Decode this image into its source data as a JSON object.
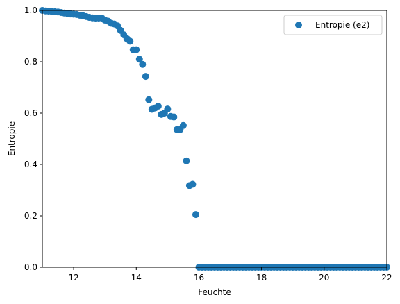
{
  "chart_data": {
    "type": "scatter",
    "title": "",
    "xlabel": "Feuchte",
    "ylabel": "Entropie",
    "xlim": [
      11,
      22
    ],
    "ylim": [
      0,
      1
    ],
    "grid": false,
    "legend_position": "top-right",
    "x_ticks": [
      "12",
      "14",
      "16",
      "18",
      "20",
      "22"
    ],
    "y_ticks": [
      "0.0",
      "0.2",
      "0.4",
      "0.6",
      "0.8",
      "1.0"
    ],
    "series": [
      {
        "name": "Entropie (e2)",
        "color": "#1f77b4",
        "x": [
          11.0,
          11.1,
          11.2,
          11.3,
          11.4,
          11.5,
          11.6,
          11.7,
          11.8,
          11.9,
          12.0,
          12.1,
          12.2,
          12.3,
          12.4,
          12.5,
          12.6,
          12.7,
          12.8,
          12.9,
          13.0,
          13.1,
          13.2,
          13.3,
          13.4,
          13.5,
          13.6,
          13.7,
          13.8,
          13.9,
          14.0,
          14.1,
          14.2,
          14.3,
          14.4,
          14.5,
          14.6,
          14.7,
          14.8,
          14.9,
          15.0,
          15.1,
          15.2,
          15.3,
          15.4,
          15.5,
          15.6,
          15.7,
          15.8,
          15.9,
          16.0,
          16.1,
          16.2,
          16.3,
          16.4,
          16.5,
          16.6,
          16.7,
          16.8,
          16.9,
          17.0,
          17.1,
          17.2,
          17.3,
          17.4,
          17.5,
          17.6,
          17.7,
          17.8,
          17.9,
          18.0,
          18.1,
          18.2,
          18.3,
          18.4,
          18.5,
          18.6,
          18.7,
          18.8,
          18.9,
          19.0,
          19.1,
          19.2,
          19.3,
          19.4,
          19.5,
          19.6,
          19.7,
          19.8,
          19.9,
          20.0,
          20.1,
          20.2,
          20.3,
          20.4,
          20.5,
          20.6,
          20.7,
          20.8,
          20.9,
          21.0,
          21.1,
          21.2,
          21.3,
          21.4,
          21.5,
          21.6,
          21.7,
          21.8,
          21.9,
          22.0
        ],
        "y": [
          1.0,
          0.998,
          0.997,
          0.996,
          0.995,
          0.994,
          0.992,
          0.99,
          0.988,
          0.986,
          0.985,
          0.984,
          0.981,
          0.979,
          0.976,
          0.973,
          0.971,
          0.97,
          0.97,
          0.97,
          0.962,
          0.958,
          0.95,
          0.947,
          0.94,
          0.922,
          0.905,
          0.89,
          0.88,
          0.847,
          0.847,
          0.81,
          0.79,
          0.743,
          0.652,
          0.615,
          0.62,
          0.627,
          0.595,
          0.6,
          0.616,
          0.587,
          0.585,
          0.536,
          0.536,
          0.552,
          0.414,
          0.318,
          0.323,
          0.205,
          0.0,
          0.0,
          0.0,
          0.0,
          0.0,
          0.0,
          0.0,
          0.0,
          0.0,
          0.0,
          0.0,
          0.0,
          0.0,
          0.0,
          0.0,
          0.0,
          0.0,
          0.0,
          0.0,
          0.0,
          0.0,
          0.0,
          0.0,
          0.0,
          0.0,
          0.0,
          0.0,
          0.0,
          0.0,
          0.0,
          0.0,
          0.0,
          0.0,
          0.0,
          0.0,
          0.0,
          0.0,
          0.0,
          0.0,
          0.0,
          0.0,
          0.0,
          0.0,
          0.0,
          0.0,
          0.0,
          0.0,
          0.0,
          0.0,
          0.0,
          0.0,
          0.0,
          0.0,
          0.0,
          0.0,
          0.0,
          0.0,
          0.0,
          0.0,
          0.0,
          0.0
        ]
      }
    ]
  }
}
